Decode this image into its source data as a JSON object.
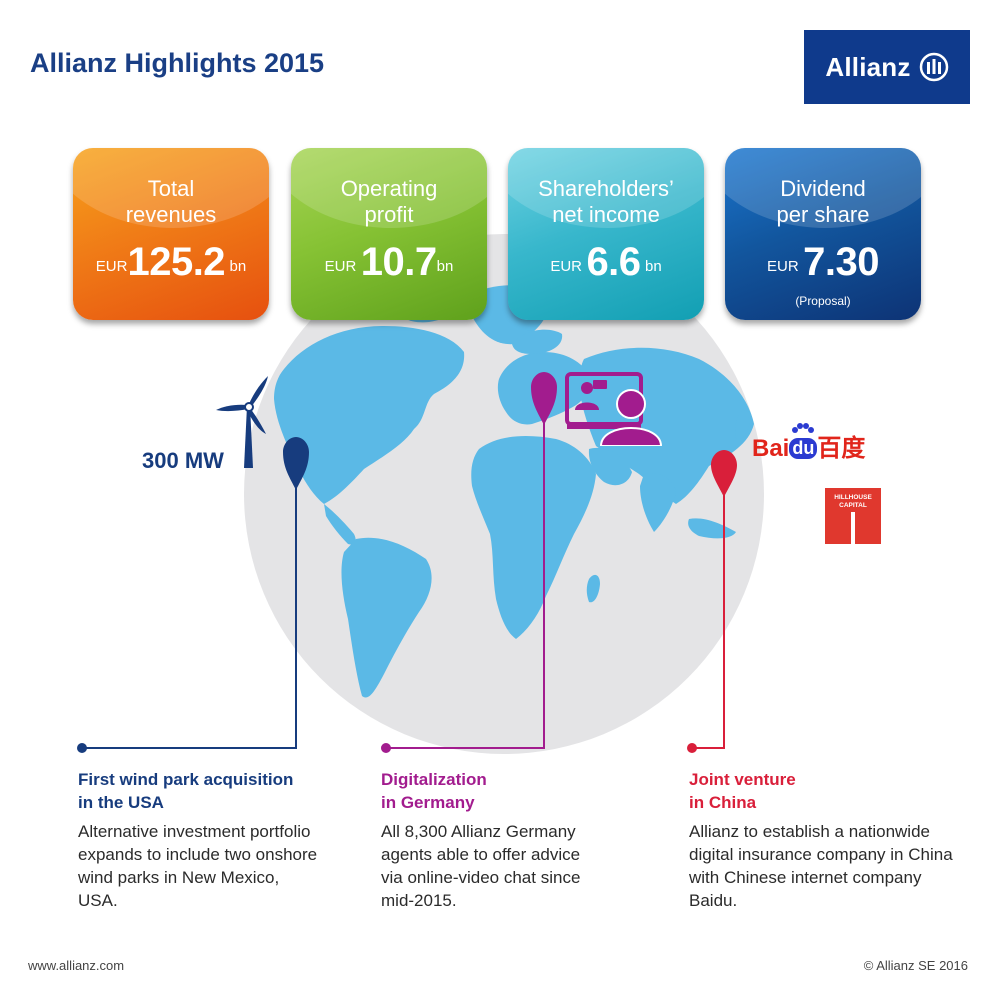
{
  "title": "Allianz Highlights 2015",
  "logo": {
    "text": "Allianz"
  },
  "kpis": [
    {
      "label_line1": "Total",
      "label_line2": "revenues",
      "currency": "EUR",
      "value": "125.2",
      "unit": "bn",
      "note": ""
    },
    {
      "label_line1": "Operating",
      "label_line2": "profit",
      "currency": "EUR",
      "value": "10.7",
      "unit": "bn",
      "note": ""
    },
    {
      "label_line1": "Shareholders’",
      "label_line2": "net income",
      "currency": "EUR",
      "value": "6.6",
      "unit": "bn",
      "note": ""
    },
    {
      "label_line1": "Dividend",
      "label_line2": "per share",
      "currency": "EUR",
      "value": "7.30",
      "unit": "",
      "note": "(Proposal)"
    }
  ],
  "wind": {
    "capacity": "300 MW"
  },
  "partners": {
    "baidu_latin": "Bai",
    "baidu_du": "du",
    "baidu_chinese": "百度",
    "hillhouse_line1": "HILLHOUSE",
    "hillhouse_line2": "CAPITAL"
  },
  "stories": [
    {
      "heading_line1": "First wind park acquisition",
      "heading_line2": "in the USA",
      "text": "Alternative investment portfolio expands to include two onshore wind parks in New Mexico, USA."
    },
    {
      "heading_line1": "Digitalization",
      "heading_line2": "in Germany",
      "text": "All 8,300 Allianz Germany agents able to offer advice via online-video chat since mid-2015."
    },
    {
      "heading_line1": "Joint venture",
      "heading_line2": "in China",
      "text": "Allianz to establish a nationwide digital insurance company in China with Chinese internet company Baidu."
    }
  ],
  "footer": {
    "left": "www.allianz.com",
    "right": "© Allianz SE 2016"
  },
  "colors": {
    "brand": "#0f3a8c",
    "usa": "#173c7e",
    "germany": "#a21c8e",
    "china": "#d91f3a",
    "land": "#5bb9e6",
    "globe": "#e4e4e6"
  }
}
